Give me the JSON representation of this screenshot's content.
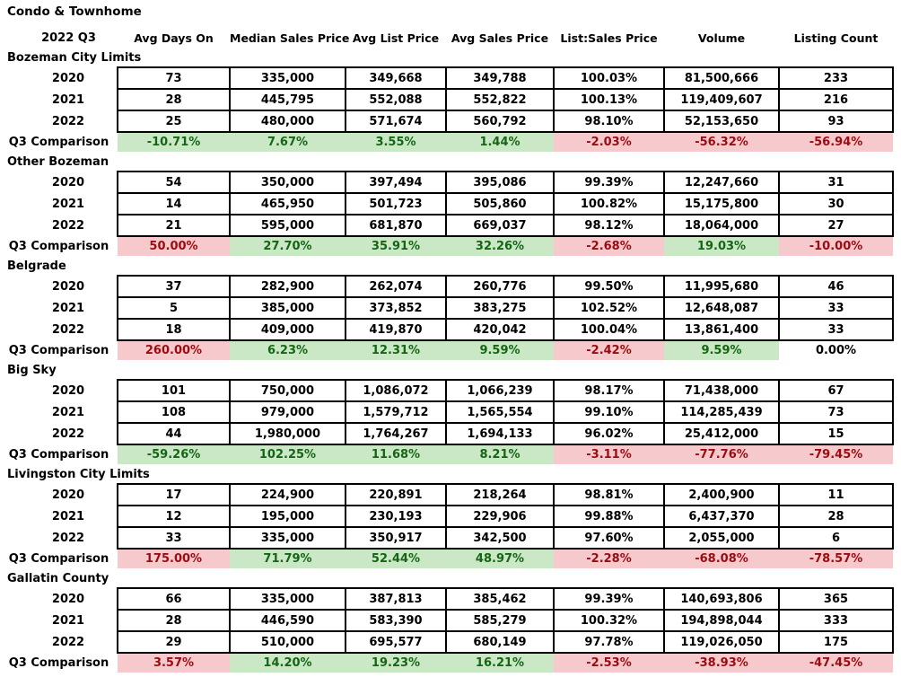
{
  "title": "Condo & Townhome",
  "subtitle": "2022 Q3",
  "comparison_label": "Q3 Comparison",
  "columns": [
    "Avg Days On",
    "Median Sales Price",
    "Avg List Price",
    "Avg Sales Price",
    "List:Sales Price",
    "Volume",
    "Listing Count"
  ],
  "colors": {
    "good_bg": "#cbe8c6",
    "good_text": "#156515",
    "bad_bg": "#f6c9cd",
    "bad_text": "#9c0b10",
    "border": "#000000"
  },
  "sections": [
    {
      "name": "Bozeman City Limits",
      "rows": [
        {
          "year": "2020",
          "values": [
            "73",
            "335,000",
            "349,668",
            "349,788",
            "100.03%",
            "81,500,666",
            "233"
          ]
        },
        {
          "year": "2021",
          "values": [
            "28",
            "445,795",
            "552,088",
            "552,822",
            "100.13%",
            "119,409,607",
            "216"
          ]
        },
        {
          "year": "2022",
          "values": [
            "25",
            "480,000",
            "571,674",
            "560,792",
            "98.10%",
            "52,153,650",
            "93"
          ]
        }
      ],
      "comparison": [
        {
          "value": "-10.71%",
          "status": "good"
        },
        {
          "value": "7.67%",
          "status": "good"
        },
        {
          "value": "3.55%",
          "status": "good"
        },
        {
          "value": "1.44%",
          "status": "good"
        },
        {
          "value": "-2.03%",
          "status": "bad"
        },
        {
          "value": "-56.32%",
          "status": "bad"
        },
        {
          "value": "-56.94%",
          "status": "bad"
        }
      ]
    },
    {
      "name": "Other Bozeman",
      "rows": [
        {
          "year": "2020",
          "values": [
            "54",
            "350,000",
            "397,494",
            "395,086",
            "99.39%",
            "12,247,660",
            "31"
          ]
        },
        {
          "year": "2021",
          "values": [
            "14",
            "465,950",
            "501,723",
            "505,860",
            "100.82%",
            "15,175,800",
            "30"
          ]
        },
        {
          "year": "2022",
          "values": [
            "21",
            "595,000",
            "681,870",
            "669,037",
            "98.12%",
            "18,064,000",
            "27"
          ]
        }
      ],
      "comparison": [
        {
          "value": "50.00%",
          "status": "bad"
        },
        {
          "value": "27.70%",
          "status": "good"
        },
        {
          "value": "35.91%",
          "status": "good"
        },
        {
          "value": "32.26%",
          "status": "good"
        },
        {
          "value": "-2.68%",
          "status": "bad"
        },
        {
          "value": "19.03%",
          "status": "good"
        },
        {
          "value": "-10.00%",
          "status": "bad"
        }
      ]
    },
    {
      "name": "Belgrade",
      "rows": [
        {
          "year": "2020",
          "values": [
            "37",
            "282,900",
            "262,074",
            "260,776",
            "99.50%",
            "11,995,680",
            "46"
          ]
        },
        {
          "year": "2021",
          "values": [
            "5",
            "385,000",
            "373,852",
            "383,275",
            "102.52%",
            "12,648,087",
            "33"
          ]
        },
        {
          "year": "2022",
          "values": [
            "18",
            "409,000",
            "419,870",
            "420,042",
            "100.04%",
            "13,861,400",
            "33"
          ]
        }
      ],
      "comparison": [
        {
          "value": "260.00%",
          "status": "bad"
        },
        {
          "value": "6.23%",
          "status": "good"
        },
        {
          "value": "12.31%",
          "status": "good"
        },
        {
          "value": "9.59%",
          "status": "good"
        },
        {
          "value": "-2.42%",
          "status": "bad"
        },
        {
          "value": "9.59%",
          "status": "good"
        },
        {
          "value": "0.00%",
          "status": "neutral"
        }
      ]
    },
    {
      "name": "Big Sky",
      "rows": [
        {
          "year": "2020",
          "values": [
            "101",
            "750,000",
            "1,086,072",
            "1,066,239",
            "98.17%",
            "71,438,000",
            "67"
          ]
        },
        {
          "year": "2021",
          "values": [
            "108",
            "979,000",
            "1,579,712",
            "1,565,554",
            "99.10%",
            "114,285,439",
            "73"
          ]
        },
        {
          "year": "2022",
          "values": [
            "44",
            "1,980,000",
            "1,764,267",
            "1,694,133",
            "96.02%",
            "25,412,000",
            "15"
          ]
        }
      ],
      "comparison": [
        {
          "value": "-59.26%",
          "status": "good"
        },
        {
          "value": "102.25%",
          "status": "good"
        },
        {
          "value": "11.68%",
          "status": "good"
        },
        {
          "value": "8.21%",
          "status": "good"
        },
        {
          "value": "-3.11%",
          "status": "bad"
        },
        {
          "value": "-77.76%",
          "status": "bad"
        },
        {
          "value": "-79.45%",
          "status": "bad"
        }
      ]
    },
    {
      "name": "Livingston City Limits",
      "rows": [
        {
          "year": "2020",
          "values": [
            "17",
            "224,900",
            "220,891",
            "218,264",
            "98.81%",
            "2,400,900",
            "11"
          ]
        },
        {
          "year": "2021",
          "values": [
            "12",
            "195,000",
            "230,193",
            "229,906",
            "99.88%",
            "6,437,370",
            "28"
          ]
        },
        {
          "year": "2022",
          "values": [
            "33",
            "335,000",
            "350,917",
            "342,500",
            "97.60%",
            "2,055,000",
            "6"
          ]
        }
      ],
      "comparison": [
        {
          "value": "175.00%",
          "status": "bad"
        },
        {
          "value": "71.79%",
          "status": "good"
        },
        {
          "value": "52.44%",
          "status": "good"
        },
        {
          "value": "48.97%",
          "status": "good"
        },
        {
          "value": "-2.28%",
          "status": "bad"
        },
        {
          "value": "-68.08%",
          "status": "bad"
        },
        {
          "value": "-78.57%",
          "status": "bad"
        }
      ]
    },
    {
      "name": "Gallatin County",
      "rows": [
        {
          "year": "2020",
          "values": [
            "66",
            "335,000",
            "387,813",
            "385,462",
            "99.39%",
            "140,693,806",
            "365"
          ]
        },
        {
          "year": "2021",
          "values": [
            "28",
            "446,590",
            "583,390",
            "585,279",
            "100.32%",
            "194,898,044",
            "333"
          ]
        },
        {
          "year": "2022",
          "values": [
            "29",
            "510,000",
            "695,577",
            "680,149",
            "97.78%",
            "119,026,050",
            "175"
          ]
        }
      ],
      "comparison": [
        {
          "value": "3.57%",
          "status": "bad"
        },
        {
          "value": "14.20%",
          "status": "good"
        },
        {
          "value": "19.23%",
          "status": "good"
        },
        {
          "value": "16.21%",
          "status": "good"
        },
        {
          "value": "-2.53%",
          "status": "bad"
        },
        {
          "value": "-38.93%",
          "status": "bad"
        },
        {
          "value": "-47.45%",
          "status": "bad"
        }
      ]
    }
  ]
}
